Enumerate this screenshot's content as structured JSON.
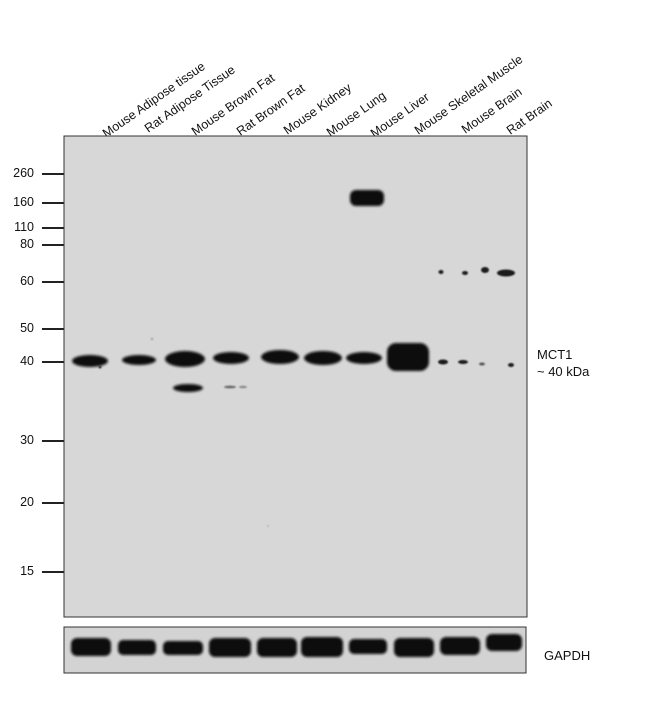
{
  "lanes": [
    "Mouse Adipose tissue",
    "Rat Adipose Tissue",
    "Mouse Brown Fat",
    "Rat Brown Fat",
    "Mouse Kidney",
    "Mouse Lung",
    "Mouse Liver",
    "Mouse Skeletal Muscle",
    "Mouse Brain",
    "Rat Brain"
  ],
  "markers": [
    "260",
    "160",
    "110",
    "80",
    "60",
    "50",
    "40",
    "30",
    "20",
    "15"
  ],
  "target": {
    "name": "MCT1",
    "size": "~ 40 kDa"
  },
  "loading_control": "GAPDH",
  "colors": {
    "membrane": "#d7d7d7",
    "band": "#0d0d0d"
  }
}
